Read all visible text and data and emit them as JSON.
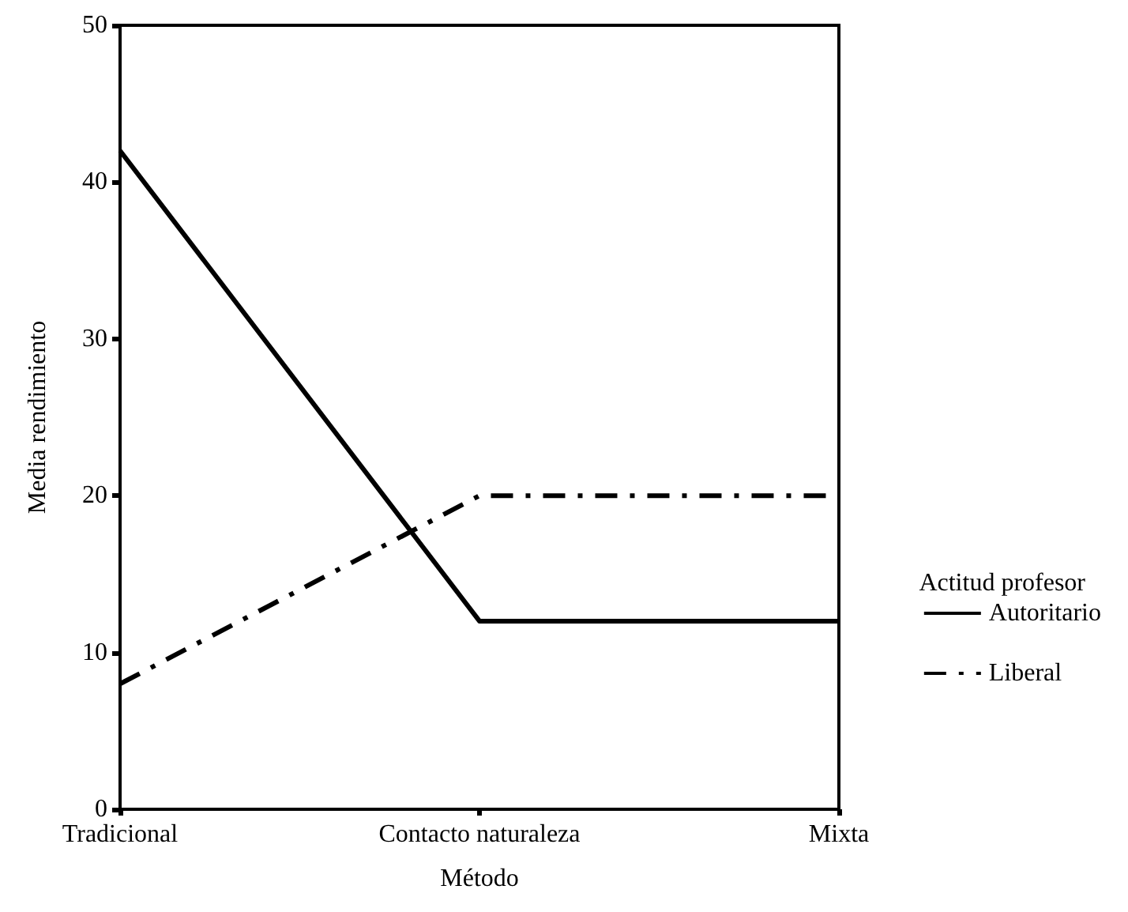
{
  "chart_data": {
    "type": "line",
    "xlabel": "Método",
    "ylabel": "Media rendimiento",
    "legend_title": "Actitud profesor",
    "categories": [
      "Tradicional",
      "Contacto naturaleza",
      "Mixta"
    ],
    "series": [
      {
        "name": "Autoritario",
        "color": "#000000",
        "values": [
          42,
          12,
          12
        ],
        "line_style": "solid"
      },
      {
        "name": "Liberal",
        "color": "#000000",
        "values": [
          8,
          20,
          20
        ],
        "line_style": "dashed"
      }
    ],
    "ylim": [
      0,
      50
    ],
    "yticks": [
      0,
      10,
      20,
      30,
      40,
      50
    ],
    "grid": false,
    "legend": "right",
    "marker": "none"
  }
}
